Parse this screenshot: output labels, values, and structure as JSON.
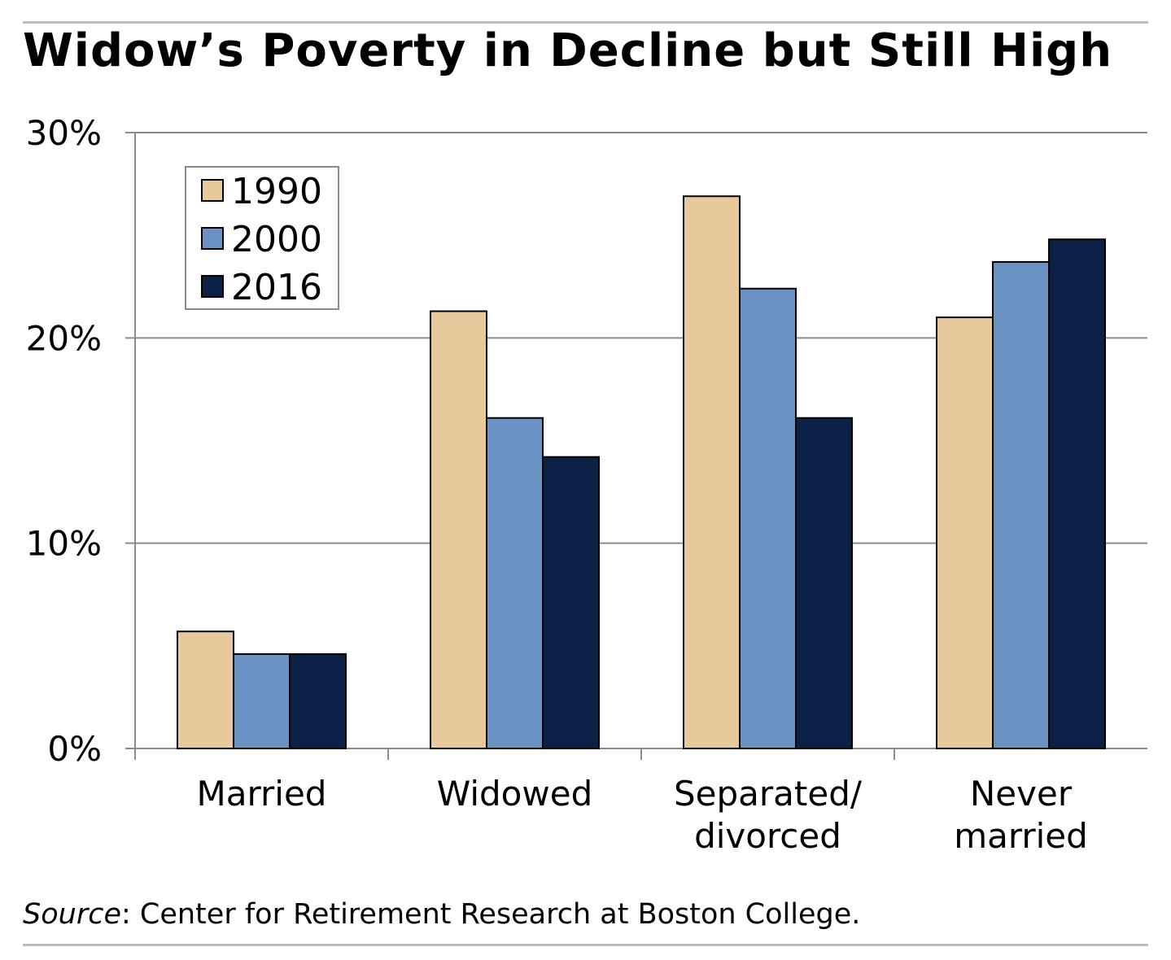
{
  "title": "Widow’s Poverty in Decline but Still High",
  "source": {
    "label": "Source",
    "text": ": Center for Retirement Research at Boston College."
  },
  "chart_data": {
    "type": "bar",
    "categories": [
      [
        "Married"
      ],
      [
        "Widowed"
      ],
      [
        "Separated/",
        "divorced"
      ],
      [
        "Never",
        "married"
      ]
    ],
    "series": [
      {
        "name": "1990",
        "color": "#e8c99c",
        "values": [
          5.7,
          21.3,
          26.9,
          21.0
        ]
      },
      {
        "name": "2000",
        "color": "#6a93c4",
        "values": [
          4.6,
          16.1,
          22.4,
          23.7
        ]
      },
      {
        "name": "2016",
        "color": "#0c2145",
        "values": [
          4.6,
          14.2,
          16.1,
          24.8
        ]
      }
    ],
    "ylim": [
      0,
      30
    ],
    "yticks": [
      0,
      10,
      20,
      30
    ],
    "ytick_labels": [
      "0%",
      "10%",
      "20%",
      "30%"
    ],
    "grid": true,
    "legend": "top-left"
  }
}
